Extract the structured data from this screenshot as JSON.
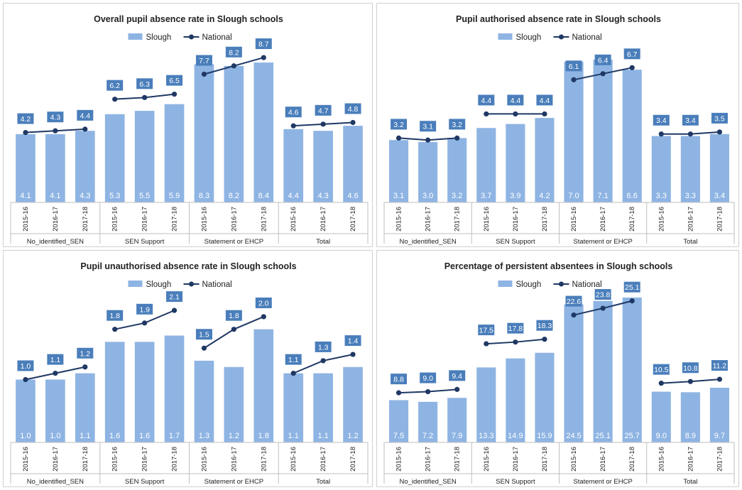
{
  "legend": {
    "bar": "Slough",
    "line": "National"
  },
  "colors": {
    "bar": "#8eb4e3",
    "line": "#1f3864",
    "label_box": "#4a7ebb",
    "axis": "#bfbfbf"
  },
  "group_labels": [
    "No_identified_SEN",
    "SEN Support",
    "Statement or EHCP",
    "Total"
  ],
  "year_labels": [
    "2015-16",
    "2016-17",
    "2017-18"
  ],
  "chart_data": [
    {
      "type": "bar",
      "title": "Overall pupil absence rate in Slough schools",
      "categories": [
        "2015-16",
        "2016-17",
        "2017-18",
        "2015-16",
        "2016-17",
        "2017-18",
        "2015-16",
        "2016-17",
        "2017-18",
        "2015-16",
        "2016-17",
        "2017-18"
      ],
      "groups": [
        "No_identified_SEN",
        "SEN Support",
        "Statement or EHCP",
        "Total"
      ],
      "ylim": [
        0,
        9.3
      ],
      "series": [
        {
          "name": "Slough",
          "values": [
            4.1,
            4.1,
            4.3,
            5.3,
            5.5,
            5.9,
            8.3,
            8.2,
            8.4,
            4.4,
            4.3,
            4.6
          ]
        },
        {
          "name": "National",
          "values": [
            4.2,
            4.3,
            4.4,
            6.2,
            6.3,
            6.5,
            7.7,
            8.2,
            8.7,
            4.6,
            4.7,
            4.8
          ]
        }
      ]
    },
    {
      "type": "bar",
      "title": "Pupil authorised absence rate in Slough schools",
      "categories": [
        "2015-16",
        "2016-17",
        "2017-18",
        "2015-16",
        "2016-17",
        "2017-18",
        "2015-16",
        "2016-17",
        "2017-18",
        "2015-16",
        "2016-17",
        "2017-18"
      ],
      "groups": [
        "No_identified_SEN",
        "SEN Support",
        "Statement or EHCP",
        "Total"
      ],
      "ylim": [
        0,
        7.7
      ],
      "series": [
        {
          "name": "Slough",
          "values": [
            3.1,
            3.0,
            3.2,
            3.7,
            3.9,
            4.2,
            7.0,
            7.1,
            6.6,
            3.3,
            3.3,
            3.4
          ]
        },
        {
          "name": "National",
          "values": [
            3.2,
            3.1,
            3.2,
            4.4,
            4.4,
            4.4,
            6.1,
            6.4,
            6.7,
            3.4,
            3.4,
            3.5
          ]
        }
      ]
    },
    {
      "type": "bar",
      "title": "Pupil unauthorised absence rate in Slough schools",
      "categories": [
        "2015-16",
        "2016-17",
        "2017-18",
        "2015-16",
        "2016-17",
        "2017-18",
        "2015-16",
        "2016-17",
        "2017-18",
        "2015-16",
        "2016-17",
        "2017-18"
      ],
      "groups": [
        "No_identified_SEN",
        "SEN Support",
        "Statement or EHCP",
        "Total"
      ],
      "ylim": [
        0,
        2.35
      ],
      "series": [
        {
          "name": "Slough",
          "values": [
            1.0,
            1.0,
            1.1,
            1.6,
            1.6,
            1.7,
            1.3,
            1.2,
            1.8,
            1.1,
            1.1,
            1.2
          ]
        },
        {
          "name": "National",
          "values": [
            1.0,
            1.1,
            1.2,
            1.8,
            1.9,
            2.1,
            1.5,
            1.8,
            2.0,
            1.1,
            1.3,
            1.4
          ]
        }
      ]
    },
    {
      "type": "bar",
      "title": "Percentage of persistent absentees in Slough schools",
      "categories": [
        "2015-16",
        "2016-17",
        "2017-18",
        "2015-16",
        "2016-17",
        "2017-18",
        "2015-16",
        "2016-17",
        "2017-18",
        "2015-16",
        "2016-17",
        "2017-18"
      ],
      "groups": [
        "No_identified_SEN",
        "SEN Support",
        "Statement or EHCP",
        "Total"
      ],
      "ylim": [
        0,
        26.2
      ],
      "series": [
        {
          "name": "Slough",
          "values": [
            7.5,
            7.2,
            7.9,
            13.3,
            14.9,
            15.9,
            24.5,
            25.1,
            25.7,
            9.0,
            8.9,
            9.7
          ]
        },
        {
          "name": "National",
          "values": [
            8.8,
            9.0,
            9.4,
            17.5,
            17.8,
            18.3,
            22.6,
            23.8,
            25.1,
            10.5,
            10.8,
            11.2
          ]
        }
      ]
    }
  ]
}
